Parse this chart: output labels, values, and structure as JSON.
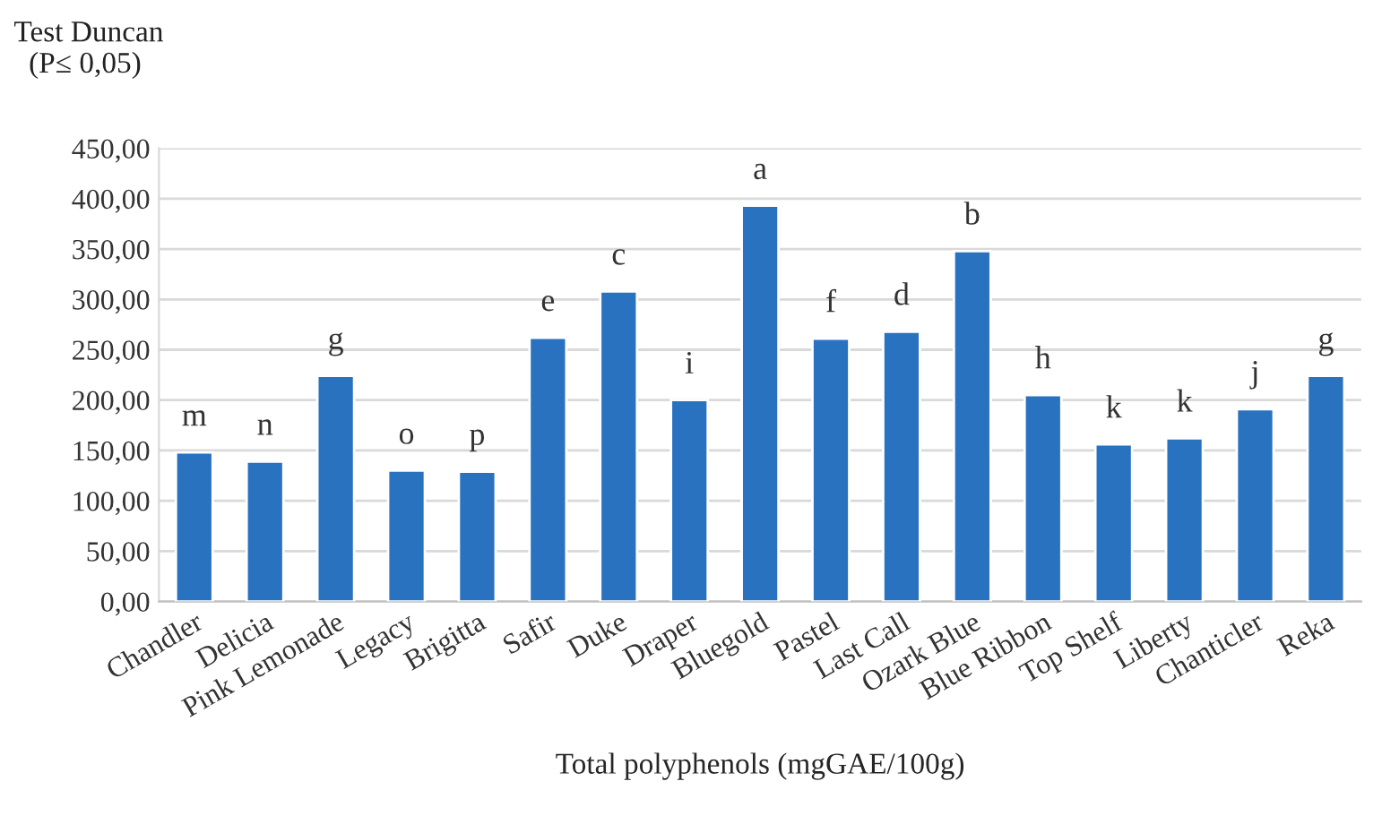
{
  "chart_data": {
    "type": "bar",
    "xlabel": "Total polyphenols (mgGAE/100g)",
    "categories": [
      "Chandler",
      "Delicia",
      "Pink Lemonade",
      "Legacy",
      "Brigitta",
      "Safir",
      "Duke",
      "Draper",
      "Bluegold",
      "Pastel",
      "Last Call",
      "Ozark Blue",
      "Blue Ribbon",
      "Top Shelf",
      "Liberty",
      "Chanticler",
      "Reka"
    ],
    "values": [
      148,
      139,
      224,
      130,
      129,
      262,
      308,
      200,
      393,
      261,
      268,
      348,
      205,
      156,
      162,
      191,
      224
    ],
    "color": "#2872c0",
    "ylim": [
      0,
      450
    ],
    "yticks": [
      {
        "value": 0,
        "label": "0,00"
      },
      {
        "value": 50,
        "label": "50,00"
      },
      {
        "value": 100,
        "label": "100,00"
      },
      {
        "value": 150,
        "label": "150,00"
      },
      {
        "value": 200,
        "label": "200,00"
      },
      {
        "value": 250,
        "label": "250,00"
      },
      {
        "value": 300,
        "label": "300,00"
      },
      {
        "value": 350,
        "label": "350,00"
      },
      {
        "value": 400,
        "label": "400,00"
      },
      {
        "value": 450,
        "label": "450,00"
      }
    ],
    "grid": "y",
    "annotations": [
      {
        "text": "m",
        "x": "Chandler",
        "y": 148
      },
      {
        "text": "n",
        "x": "Delicia",
        "y": 139
      },
      {
        "text": "g",
        "x": "Pink Lemonade",
        "y": 224
      },
      {
        "text": "o",
        "x": "Legacy",
        "y": 130
      },
      {
        "text": "p",
        "x": "Brigitta",
        "y": 129
      },
      {
        "text": "e",
        "x": "Safir",
        "y": 262
      },
      {
        "text": "c",
        "x": "Duke",
        "y": 308
      },
      {
        "text": "i",
        "x": "Draper",
        "y": 200
      },
      {
        "text": "a",
        "x": "Bluegold",
        "y": 393
      },
      {
        "text": "f",
        "x": "Pastel",
        "y": 261
      },
      {
        "text": "d",
        "x": "Last Call",
        "y": 268
      },
      {
        "text": "b",
        "x": "Ozark Blue",
        "y": 348
      },
      {
        "text": "h",
        "x": "Blue Ribbon",
        "y": 205
      },
      {
        "text": "k",
        "x": "Top Shelf",
        "y": 156
      },
      {
        "text": "k",
        "x": "Liberty",
        "y": 162
      },
      {
        "text": "j",
        "x": "Chanticler",
        "y": 191
      },
      {
        "text": "g",
        "x": "Reka",
        "y": 224
      },
      "Test Duncan\n  (P≤ 0,05)"
    ]
  }
}
